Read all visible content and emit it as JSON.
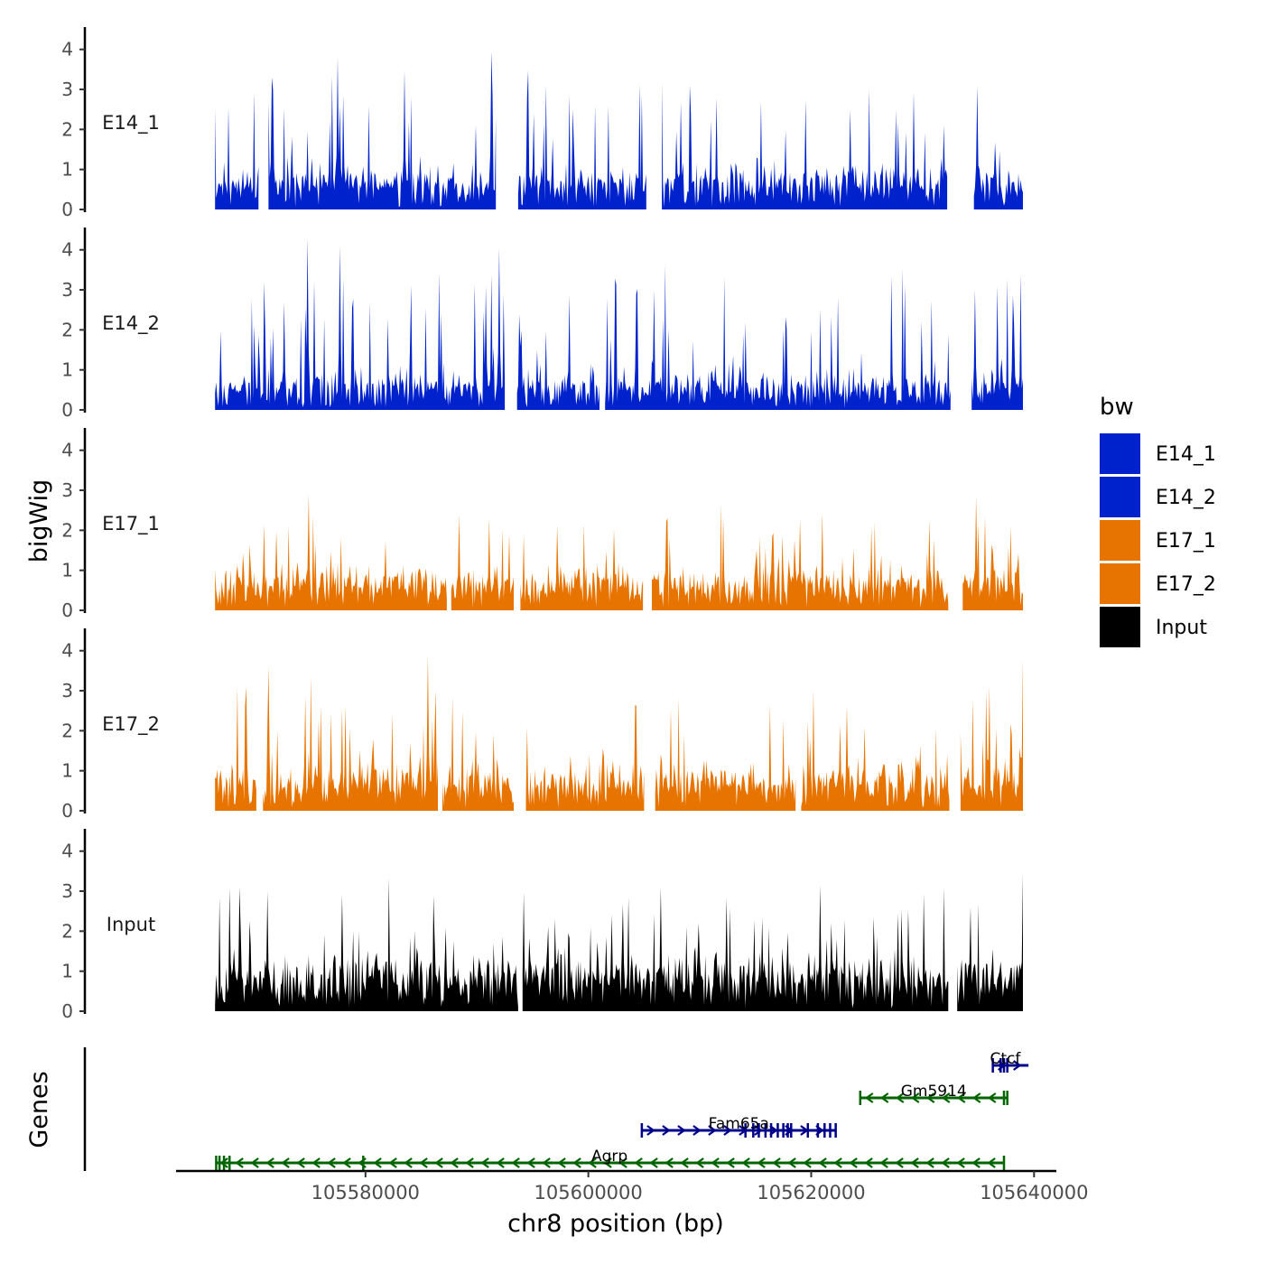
{
  "chart_data": {
    "type": "area",
    "title": "",
    "chromosome": "chr8",
    "ylabel": "bigWig",
    "genes_label": "Genes",
    "xlabel": "chr8 position (bp)",
    "xlim": [
      105563000,
      105642000
    ],
    "ylim": [
      0,
      4.4
    ],
    "x_ticks": [
      105580000,
      105600000,
      105620000,
      105640000
    ],
    "x_tick_labels": [
      "105580000",
      "105600000",
      "105620000",
      "105640000"
    ],
    "y_ticks": [
      0,
      1,
      2,
      3,
      4
    ],
    "y_tick_labels": [
      "0",
      "1",
      "2",
      "3",
      "4"
    ],
    "data_start": 105566500,
    "data_end": 105639000,
    "legend": {
      "title": "bw",
      "position": "right",
      "items": [
        {
          "label": "E14_1",
          "color": "#0022CC"
        },
        {
          "label": "E14_2",
          "color": "#0022CC"
        },
        {
          "label": "E17_1",
          "color": "#E87400"
        },
        {
          "label": "E17_2",
          "color": "#E87400"
        },
        {
          "label": "Input",
          "color": "#000000"
        }
      ]
    },
    "series": [
      {
        "name": "E14_1",
        "color": "#0022CC",
        "seed": 11,
        "base": 0.55,
        "noise": 0.65,
        "spike_prob": 0.09,
        "spike_scale": 1.9,
        "gaps": [
          [
            105570500,
            105571200
          ],
          [
            105591800,
            105593600
          ],
          [
            105605300,
            105606500
          ],
          [
            105632300,
            105634500
          ]
        ],
        "peaks": [
          [
            105571600,
            3.2
          ],
          [
            105577500,
            3.7
          ],
          [
            105583500,
            3.4
          ],
          [
            105591300,
            3.85
          ],
          [
            105623500,
            2.4
          ],
          [
            105634900,
            3.0
          ]
        ]
      },
      {
        "name": "E14_2",
        "color": "#0022CC",
        "seed": 23,
        "base": 0.45,
        "noise": 0.7,
        "spike_prob": 0.1,
        "spike_scale": 2.0,
        "gaps": [
          [
            105592600,
            105593500
          ],
          [
            105601100,
            105601400
          ],
          [
            105632600,
            105634300
          ]
        ],
        "peaks": [
          [
            105572700,
            2.6
          ],
          [
            105574800,
            4.2
          ],
          [
            105577700,
            4.0
          ],
          [
            105590800,
            3.0
          ],
          [
            105592000,
            3.95
          ],
          [
            105604300,
            2.8
          ],
          [
            105634700,
            2.9
          ]
        ]
      },
      {
        "name": "E17_1",
        "color": "#E87400",
        "seed": 37,
        "base": 0.6,
        "noise": 0.55,
        "spike_prob": 0.08,
        "spike_scale": 1.3,
        "gaps": [
          [
            105587400,
            105587600
          ],
          [
            105593400,
            105593800
          ],
          [
            105605000,
            105605600
          ],
          [
            105632400,
            105633500
          ]
        ],
        "peaks": [
          [
            105574900,
            2.8
          ],
          [
            105588400,
            2.3
          ],
          [
            105591100,
            2.2
          ],
          [
            105634800,
            2.75
          ]
        ]
      },
      {
        "name": "E17_2",
        "color": "#E87400",
        "seed": 51,
        "base": 0.6,
        "noise": 0.7,
        "spike_prob": 0.1,
        "spike_scale": 1.7,
        "gaps": [
          [
            105570300,
            105570700
          ],
          [
            105586600,
            105586800
          ],
          [
            105593400,
            105594300
          ],
          [
            105605100,
            105605900
          ],
          [
            105618700,
            105619000
          ],
          [
            105632500,
            105633300
          ]
        ],
        "peaks": [
          [
            105569300,
            3.0
          ],
          [
            105571300,
            3.5
          ],
          [
            105585600,
            3.8
          ],
          [
            105639000,
            3.7
          ]
        ]
      },
      {
        "name": "Input",
        "color": "#000000",
        "seed": 67,
        "base": 0.8,
        "noise": 0.6,
        "spike_prob": 0.09,
        "spike_scale": 1.4,
        "gaps": [
          [
            105593800,
            105594000
          ],
          [
            105632400,
            105633000
          ]
        ],
        "peaks": [
          [
            105568700,
            3.0
          ],
          [
            105571200,
            2.9
          ],
          [
            105606500,
            3.0
          ],
          [
            105620800,
            3.05
          ],
          [
            105639000,
            3.35
          ]
        ]
      }
    ],
    "genes": [
      {
        "name": "Agrp",
        "strand": "-",
        "start": 105566500,
        "end": 105637300,
        "color": "#006400",
        "exons": [
          105566600,
          105566900,
          105567300,
          105567800,
          105579800,
          105637300
        ]
      },
      {
        "name": "Fam65a",
        "strand": "+",
        "start": 105604800,
        "end": 105622200,
        "color": "#00008B",
        "exons": [
          105604800,
          105614100,
          105614800,
          105615300,
          105615900,
          105616400,
          105617000,
          105617500,
          105617900,
          105618200,
          105619700,
          105620600,
          105621200,
          105621700,
          105622200
        ]
      },
      {
        "name": "Gm5914",
        "strand": "-",
        "start": 105624400,
        "end": 105637600,
        "color": "#006400",
        "exons": [
          105624400,
          105637300,
          105637600
        ]
      },
      {
        "name": "Ctcf",
        "strand": "+",
        "start": 105636300,
        "end": 105639500,
        "color": "#00008B",
        "exons": [
          105636300,
          105637000,
          105637300,
          105637600
        ]
      }
    ]
  }
}
